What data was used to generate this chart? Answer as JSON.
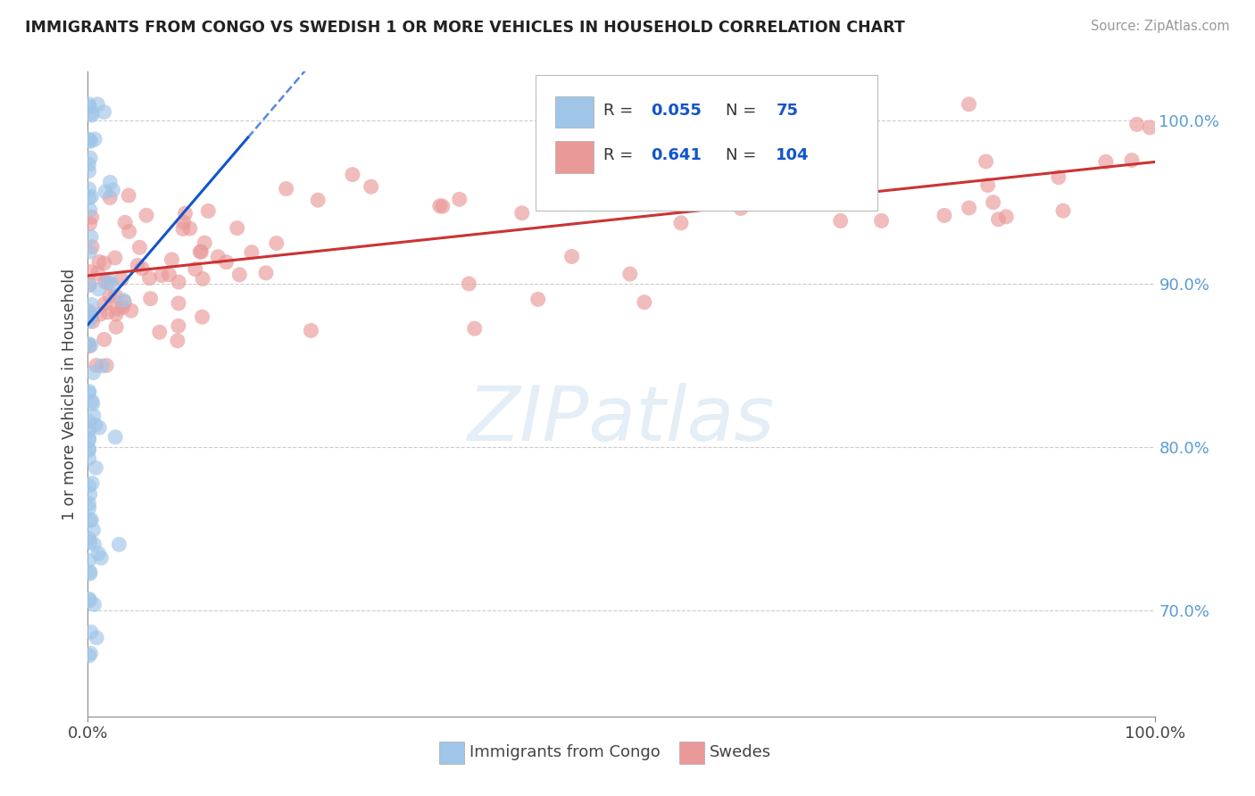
{
  "title": "IMMIGRANTS FROM CONGO VS SWEDISH 1 OR MORE VEHICLES IN HOUSEHOLD CORRELATION CHART",
  "source": "Source: ZipAtlas.com",
  "ylabel": "1 or more Vehicles in Household",
  "xlim": [
    0.0,
    1.0
  ],
  "ylim": [
    0.635,
    1.03
  ],
  "yticks": [
    0.7,
    0.8,
    0.9,
    1.0
  ],
  "ytick_labels": [
    "70.0%",
    "80.0%",
    "90.0%",
    "100.0%"
  ],
  "xtick_labels": [
    "0.0%",
    "100.0%"
  ],
  "legend_labels": [
    "Immigrants from Congo",
    "Swedes"
  ],
  "blue_R": 0.055,
  "blue_N": 75,
  "red_R": 0.641,
  "red_N": 104,
  "blue_color": "#9fc5e8",
  "red_color": "#ea9999",
  "blue_line_color": "#1155cc",
  "red_line_color": "#cc3333",
  "watermark_text": "ZIPatlas",
  "seed": 12
}
